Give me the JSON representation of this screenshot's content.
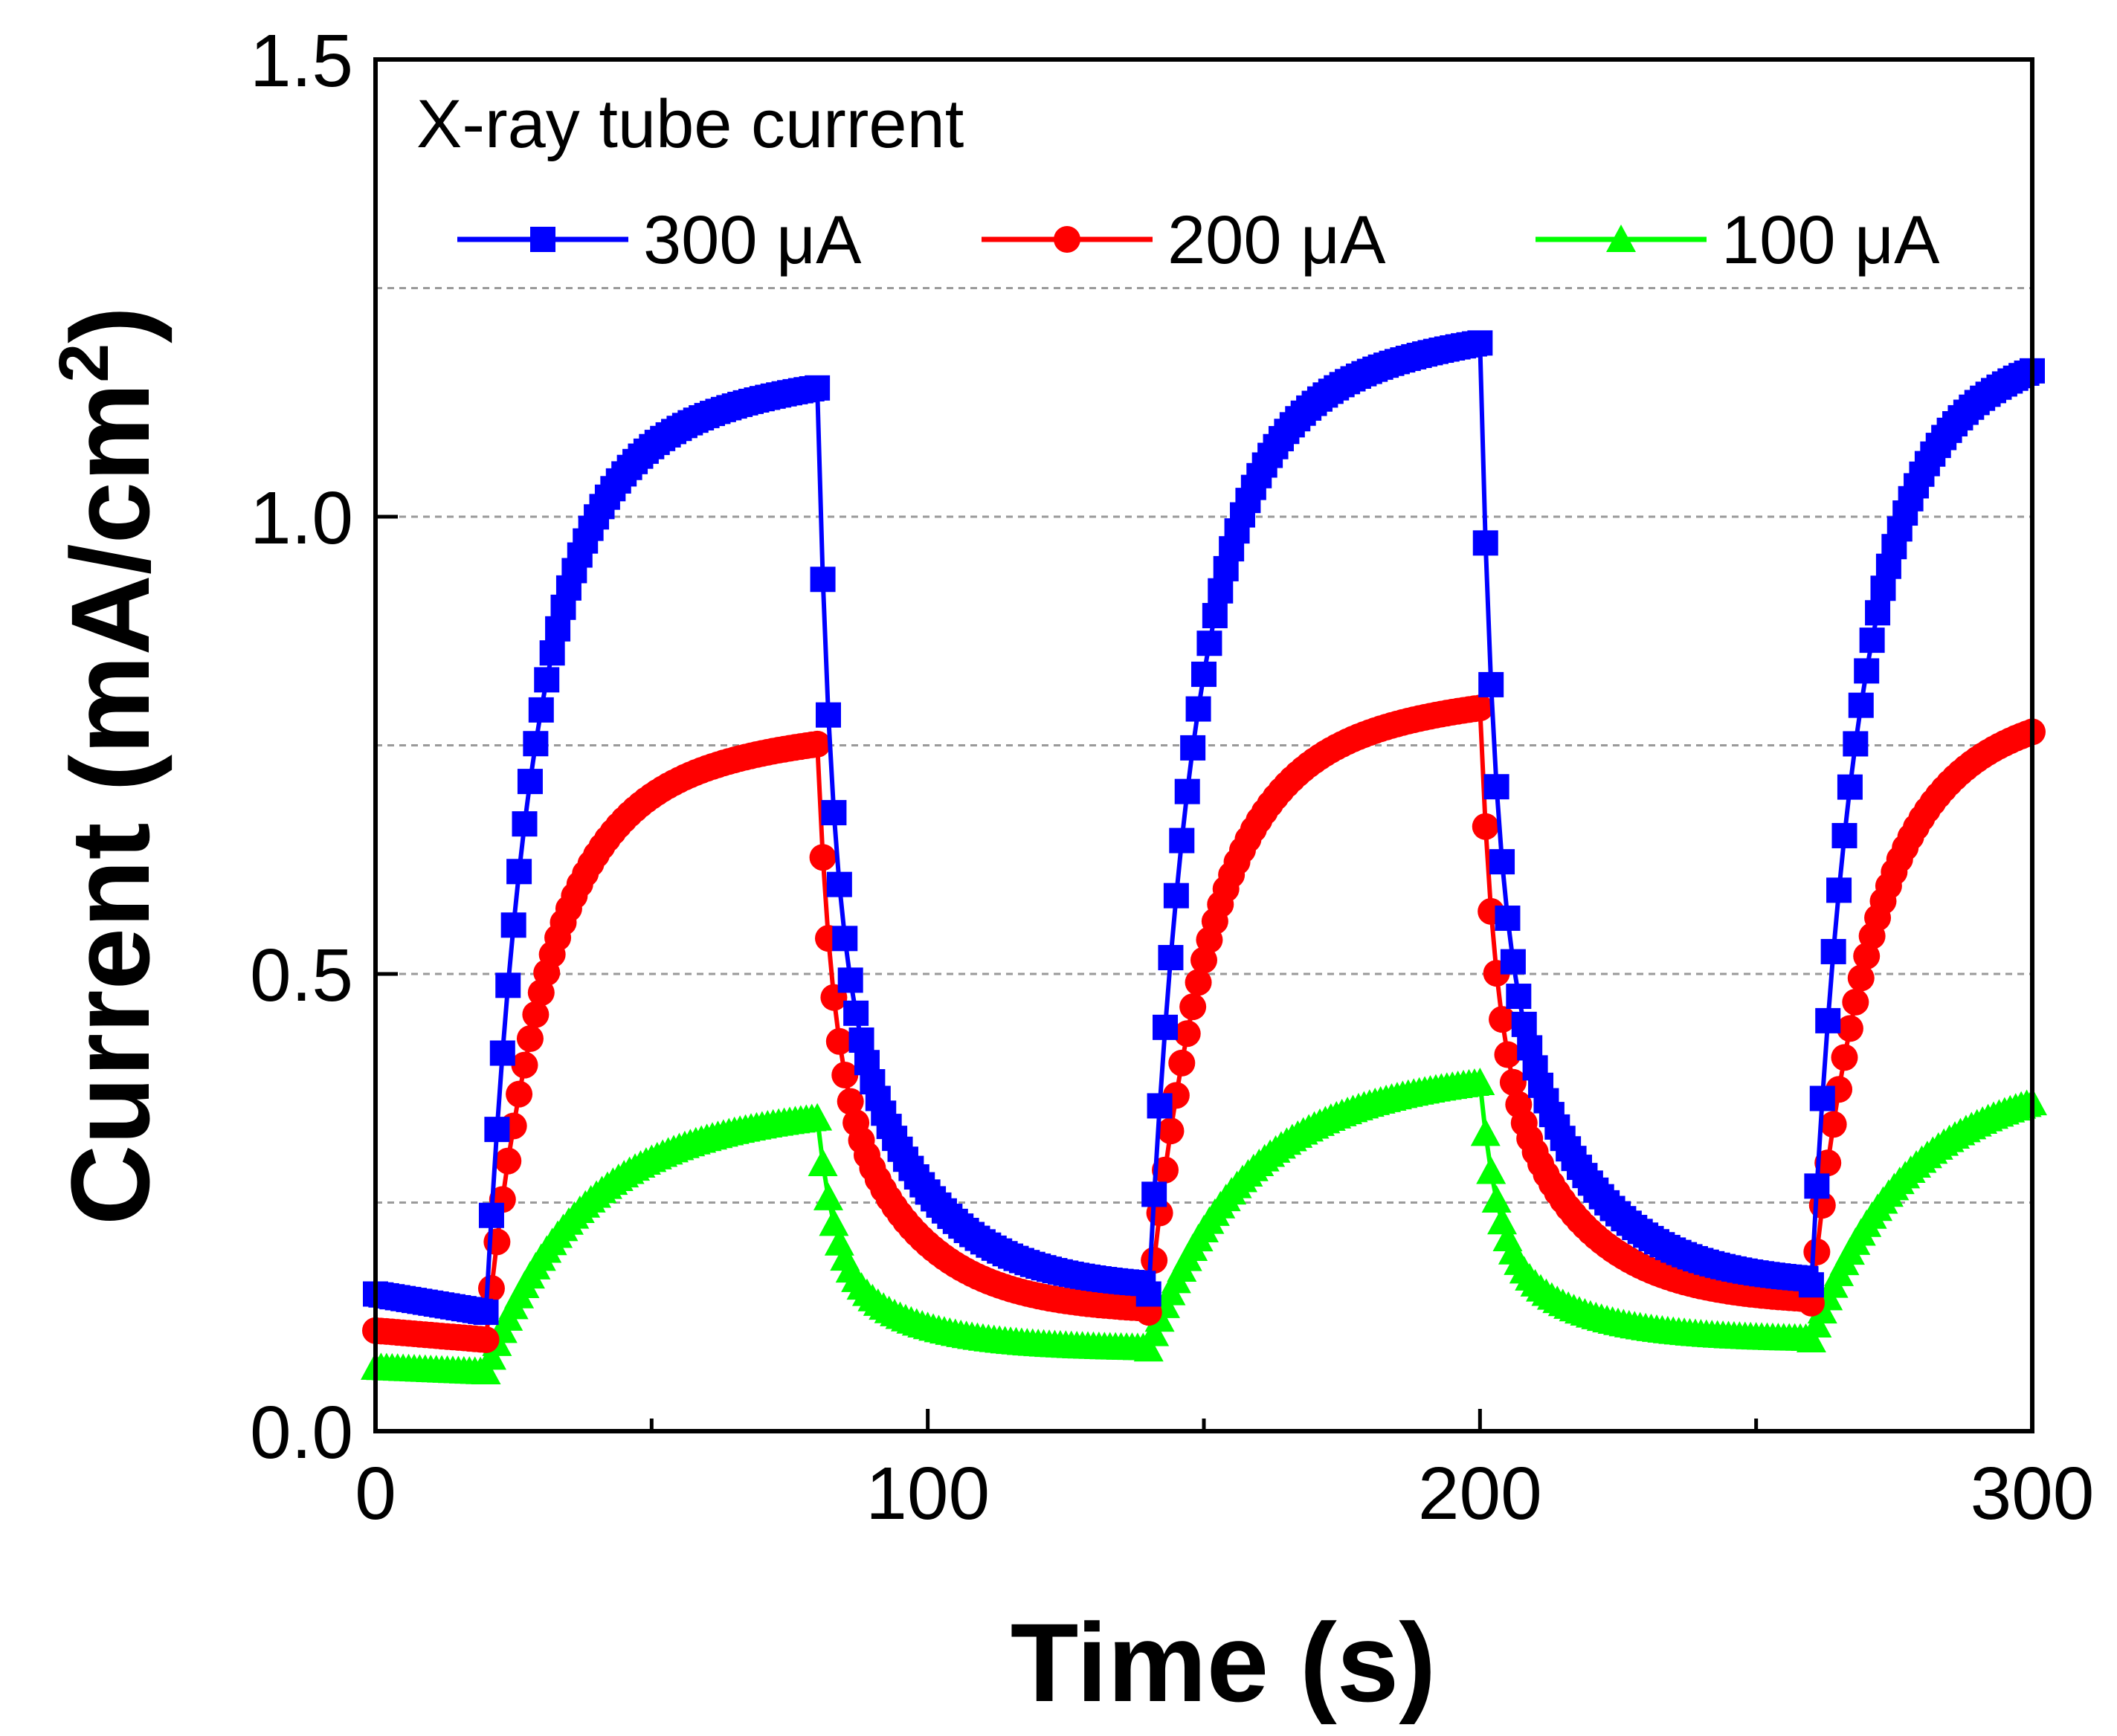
{
  "chart_data": {
    "type": "line",
    "xlabel": "Time (s)",
    "ylabel_main": "Current (mA/cm",
    "ylabel_sup": "2",
    "ylabel_close": ")",
    "xlim": [
      0,
      300
    ],
    "ylim": [
      0,
      1.5
    ],
    "x_ticks": [
      {
        "value": 0,
        "label": "0"
      },
      {
        "value": 100,
        "label": "100"
      },
      {
        "value": 200,
        "label": "200"
      },
      {
        "value": 300,
        "label": "300"
      }
    ],
    "x_minor_ticks": [
      50,
      150,
      250
    ],
    "y_ticks": [
      {
        "value": 0,
        "label": "0.0"
      },
      {
        "value": 0.5,
        "label": "0.5"
      },
      {
        "value": 1.0,
        "label": "1.0"
      },
      {
        "value": 1.5,
        "label": "1.5"
      }
    ],
    "y_gridlines": [
      0.25,
      0.5,
      0.75,
      1.0,
      1.25
    ],
    "legend": {
      "title": "X-ray tube current",
      "position": "top",
      "entries": [
        "300 μA",
        "200 μA",
        "100 μA"
      ]
    },
    "cycle": {
      "on_times": [
        20,
        140,
        260
      ],
      "off_times": [
        80,
        200
      ],
      "sample_step": 1
    },
    "series": [
      {
        "name": "300 μA",
        "color": "#0000FF",
        "marker": "square",
        "dark_start": 0.15,
        "dark_before_on": [
          0.13,
          0.15,
          0.16
        ],
        "plateau": [
          1.17,
          1.22,
          1.22
        ],
        "rise_tau": 8,
        "recovery_end": [
          0.155,
          0.16
        ],
        "decay_fast_tau": 2.5,
        "decay_slow_tau": 14,
        "decay_fast_fraction": 0.55
      },
      {
        "name": "200 μA",
        "color": "#FF0000",
        "marker": "circle",
        "dark_start": 0.11,
        "dark_before_on": [
          0.1,
          0.13,
          0.14
        ],
        "plateau": [
          0.78,
          0.82,
          0.82
        ],
        "rise_tau": 10,
        "recovery_end": [
          0.13,
          0.14
        ],
        "decay_fast_tau": 2.5,
        "decay_slow_tau": 14,
        "decay_fast_fraction": 0.5
      },
      {
        "name": "100 μA",
        "color": "#00FF00",
        "marker": "triangle",
        "dark_start": 0.07,
        "dark_before_on": [
          0.065,
          0.09,
          0.1
        ],
        "plateau": [
          0.37,
          0.41,
          0.41
        ],
        "rise_tau": 16,
        "recovery_end": [
          0.09,
          0.1
        ],
        "decay_fast_tau": 3,
        "decay_slow_tau": 14,
        "decay_fast_fraction": 0.6
      }
    ]
  }
}
